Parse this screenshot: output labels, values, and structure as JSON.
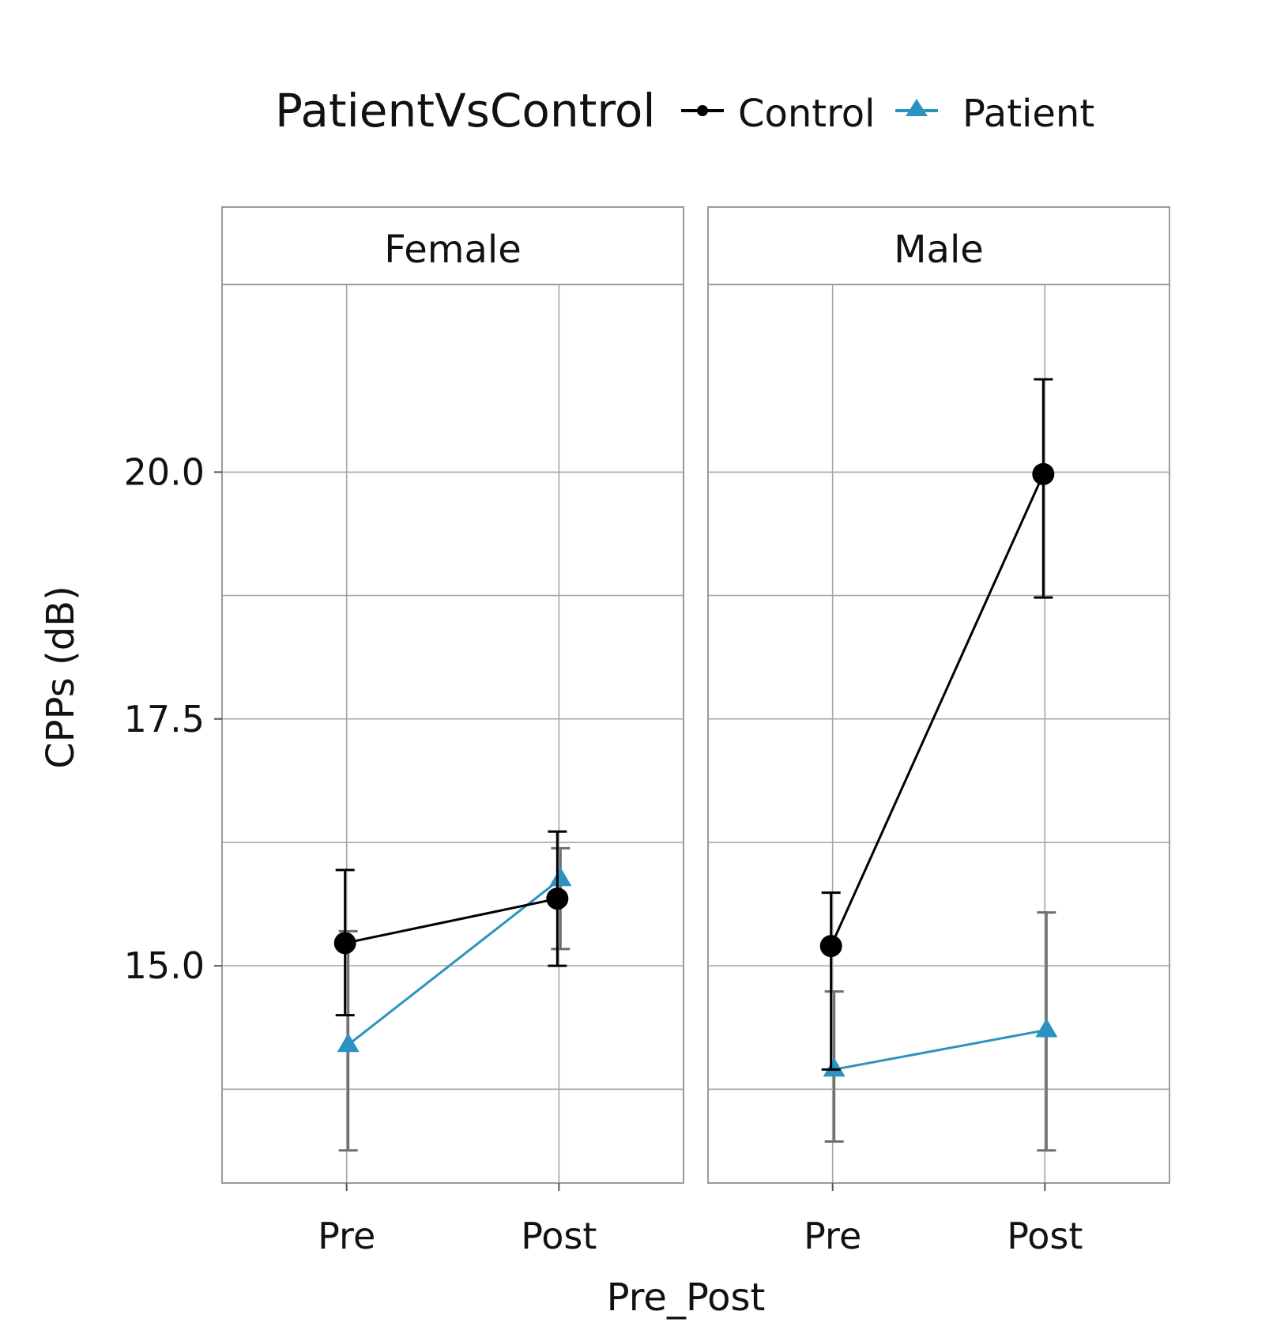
{
  "chart_data": {
    "type": "line",
    "legend": {
      "title": "PatientVsControl",
      "position": "top",
      "entries": [
        {
          "name": "Control",
          "marker": "circle",
          "color": "#000000"
        },
        {
          "name": "Patient",
          "marker": "triangle",
          "color": "#2b93bf"
        }
      ]
    },
    "xlabel": "Pre_Post",
    "ylabel": "CPPs (dB)",
    "categories": [
      "Pre",
      "Post"
    ],
    "ylim": [
      12.8,
      21.9
    ],
    "yticks": [
      15.0,
      17.5,
      20.0
    ],
    "ytick_labels": [
      "15.0",
      "17.5",
      "20.0"
    ],
    "minor_gridlines": [
      13.75,
      16.25,
      18.75
    ],
    "grid": true,
    "error_bars": true,
    "panels": [
      {
        "label": "Female",
        "series": [
          {
            "name": "Control",
            "values": [
              15.23,
              15.68
            ],
            "lower": [
              14.5,
              15.0
            ],
            "upper": [
              15.97,
              16.36
            ]
          },
          {
            "name": "Patient",
            "values": [
              14.2,
              15.88
            ],
            "lower": [
              13.13,
              15.17
            ],
            "upper": [
              15.35,
              16.19
            ]
          }
        ]
      },
      {
        "label": "Male",
        "series": [
          {
            "name": "Control",
            "values": [
              15.2,
              19.98
            ],
            "lower": [
              13.95,
              18.73
            ],
            "upper": [
              15.74,
              20.94
            ]
          },
          {
            "name": "Patient",
            "values": [
              13.95,
              14.35
            ],
            "lower": [
              13.22,
              13.13
            ],
            "upper": [
              14.74,
              15.54
            ]
          }
        ]
      }
    ]
  }
}
